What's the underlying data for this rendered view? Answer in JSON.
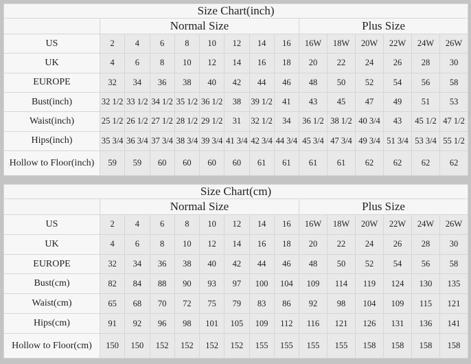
{
  "tables": [
    {
      "title": "Size Chart(inch)",
      "normal_label": "Normal Size",
      "plus_label": "Plus Size",
      "rows": [
        {
          "label": "US",
          "values": [
            "2",
            "4",
            "6",
            "8",
            "10",
            "12",
            "14",
            "16",
            "16W",
            "18W",
            "20W",
            "22W",
            "24W",
            "26W"
          ]
        },
        {
          "label": "UK",
          "values": [
            "4",
            "6",
            "8",
            "10",
            "12",
            "14",
            "16",
            "18",
            "20",
            "22",
            "24",
            "26",
            "28",
            "30"
          ]
        },
        {
          "label": "EUROPE",
          "values": [
            "32",
            "34",
            "36",
            "38",
            "40",
            "42",
            "44",
            "46",
            "48",
            "50",
            "52",
            "54",
            "56",
            "58"
          ]
        },
        {
          "label": "Bust(inch)",
          "values": [
            "32 1/2",
            "33 1/2",
            "34 1/2",
            "35 1/2",
            "36 1/2",
            "38",
            "39 1/2",
            "41",
            "43",
            "45",
            "47",
            "49",
            "51",
            "53"
          ]
        },
        {
          "label": "Waist(inch)",
          "values": [
            "25 1/2",
            "26 1/2",
            "27 1/2",
            "28 1/2",
            "29 1/2",
            "31",
            "32 1/2",
            "34",
            "36 1/2",
            "38 1/2",
            "40 3/4",
            "43",
            "45 1/2",
            "47 1/2"
          ]
        },
        {
          "label": "Hips(inch)",
          "values": [
            "35 3/4",
            "36 3/4",
            "37 3/4",
            "38 3/4",
            "39 3/4",
            "41 3/4",
            "42 3/4",
            "44 3/4",
            "45 3/4",
            "47 3/4",
            "49 3/4",
            "51 3/4",
            "53 3/4",
            "55 1/2"
          ]
        },
        {
          "label": "Hollow to Floor(inch)",
          "values": [
            "59",
            "59",
            "60",
            "60",
            "60",
            "60",
            "61",
            "61",
            "61",
            "61",
            "62",
            "62",
            "62",
            "62"
          ]
        }
      ]
    },
    {
      "title": "Size Chart(cm)",
      "normal_label": "Normal Size",
      "plus_label": "Plus Size",
      "rows": [
        {
          "label": "US",
          "values": [
            "2",
            "4",
            "6",
            "8",
            "10",
            "12",
            "14",
            "16",
            "16W",
            "18W",
            "20W",
            "22W",
            "24W",
            "26W"
          ]
        },
        {
          "label": "UK",
          "values": [
            "4",
            "6",
            "8",
            "10",
            "12",
            "14",
            "16",
            "18",
            "20",
            "22",
            "24",
            "26",
            "28",
            "30"
          ]
        },
        {
          "label": "EUROPE",
          "values": [
            "32",
            "34",
            "36",
            "38",
            "40",
            "42",
            "44",
            "46",
            "48",
            "50",
            "52",
            "54",
            "56",
            "58"
          ]
        },
        {
          "label": "Bust(cm)",
          "values": [
            "82",
            "84",
            "88",
            "90",
            "93",
            "97",
            "100",
            "104",
            "109",
            "114",
            "119",
            "124",
            "130",
            "135"
          ]
        },
        {
          "label": "Waist(cm)",
          "values": [
            "65",
            "68",
            "70",
            "72",
            "75",
            "79",
            "83",
            "86",
            "92",
            "98",
            "104",
            "109",
            "115",
            "121"
          ]
        },
        {
          "label": "Hips(cm)",
          "values": [
            "91",
            "92",
            "96",
            "98",
            "101",
            "105",
            "109",
            "112",
            "116",
            "121",
            "126",
            "131",
            "136",
            "141"
          ]
        },
        {
          "label": "Hollow to Floor(cm)",
          "values": [
            "150",
            "150",
            "152",
            "152",
            "152",
            "152",
            "155",
            "155",
            "155",
            "155",
            "158",
            "158",
            "158",
            "158"
          ]
        }
      ]
    }
  ]
}
